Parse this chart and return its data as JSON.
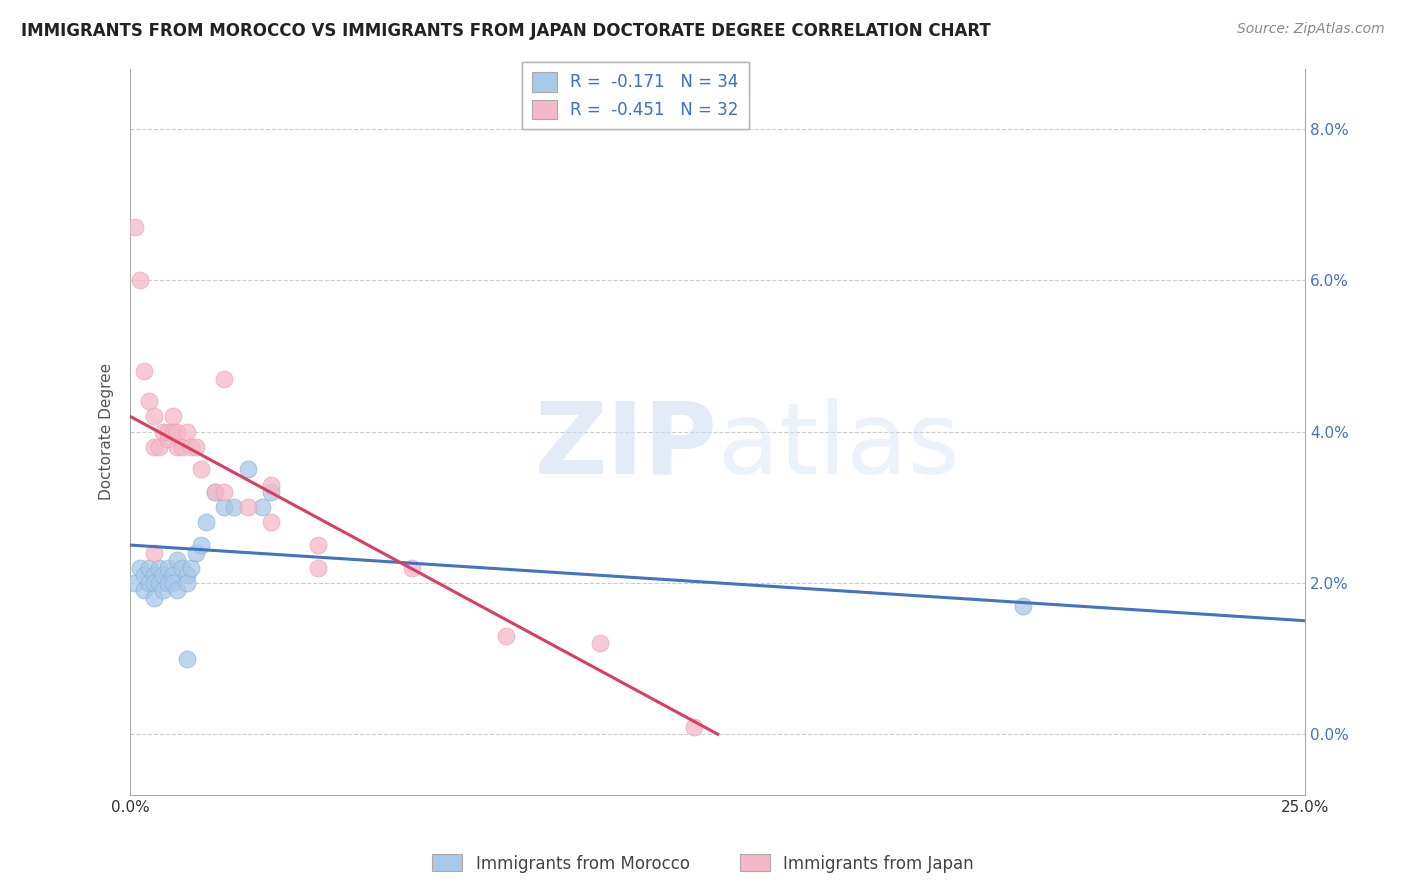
{
  "title": "IMMIGRANTS FROM MOROCCO VS IMMIGRANTS FROM JAPAN DOCTORATE DEGREE CORRELATION CHART",
  "source": "Source: ZipAtlas.com",
  "ylabel": "Doctorate Degree",
  "legend_blue_label": "R =  -0.171   N = 34",
  "legend_pink_label": "R =  -0.451   N = 32",
  "legend_bottom_blue": "Immigrants from Morocco",
  "legend_bottom_pink": "Immigrants from Japan",
  "xlim": [
    0.0,
    0.25
  ],
  "ylim": [
    -0.008,
    0.088
  ],
  "yticks": [
    0.0,
    0.02,
    0.04,
    0.06,
    0.08
  ],
  "ytick_labels_right": [
    "0.0%",
    "2.0%",
    "4.0%",
    "6.0%",
    "8.0%"
  ],
  "xticks": [
    0.0,
    0.05,
    0.1,
    0.15,
    0.2,
    0.25
  ],
  "xtick_labels": [
    "0.0%",
    "",
    "",
    "",
    "",
    "25.0%"
  ],
  "blue_color": "#a8c8e8",
  "blue_edge_color": "#7aadd4",
  "pink_color": "#f4b8c8",
  "pink_edge_color": "#e898b0",
  "blue_line_color": "#4472c4",
  "pink_line_color": "#d94060",
  "scatter_blue_x": [
    0.001,
    0.002,
    0.003,
    0.003,
    0.004,
    0.004,
    0.005,
    0.005,
    0.005,
    0.006,
    0.006,
    0.007,
    0.007,
    0.008,
    0.008,
    0.009,
    0.009,
    0.01,
    0.01,
    0.011,
    0.012,
    0.012,
    0.013,
    0.014,
    0.015,
    0.016,
    0.018,
    0.02,
    0.022,
    0.025,
    0.028,
    0.03,
    0.19,
    0.012
  ],
  "scatter_blue_y": [
    0.02,
    0.022,
    0.019,
    0.021,
    0.02,
    0.022,
    0.021,
    0.02,
    0.018,
    0.022,
    0.02,
    0.021,
    0.019,
    0.022,
    0.02,
    0.021,
    0.02,
    0.023,
    0.019,
    0.022,
    0.021,
    0.02,
    0.022,
    0.024,
    0.025,
    0.028,
    0.032,
    0.03,
    0.03,
    0.035,
    0.03,
    0.032,
    0.017,
    0.01
  ],
  "scatter_pink_x": [
    0.001,
    0.002,
    0.003,
    0.004,
    0.005,
    0.005,
    0.006,
    0.007,
    0.008,
    0.008,
    0.009,
    0.009,
    0.01,
    0.01,
    0.011,
    0.012,
    0.013,
    0.014,
    0.015,
    0.018,
    0.02,
    0.025,
    0.03,
    0.03,
    0.04,
    0.04,
    0.06,
    0.08,
    0.1,
    0.12,
    0.02,
    0.005
  ],
  "scatter_pink_y": [
    0.067,
    0.06,
    0.048,
    0.044,
    0.042,
    0.038,
    0.038,
    0.04,
    0.039,
    0.04,
    0.042,
    0.04,
    0.04,
    0.038,
    0.038,
    0.04,
    0.038,
    0.038,
    0.035,
    0.032,
    0.032,
    0.03,
    0.028,
    0.033,
    0.022,
    0.025,
    0.022,
    0.013,
    0.012,
    0.001,
    0.047,
    0.024
  ],
  "blue_trendline_x": [
    0.0,
    0.25
  ],
  "blue_trendline_y": [
    0.025,
    0.015
  ],
  "pink_trendline_x": [
    0.0,
    0.125
  ],
  "pink_trendline_y": [
    0.042,
    0.0
  ],
  "watermark_zip": "ZIP",
  "watermark_atlas": "atlas",
  "background_color": "#ffffff",
  "grid_color": "#cccccc"
}
